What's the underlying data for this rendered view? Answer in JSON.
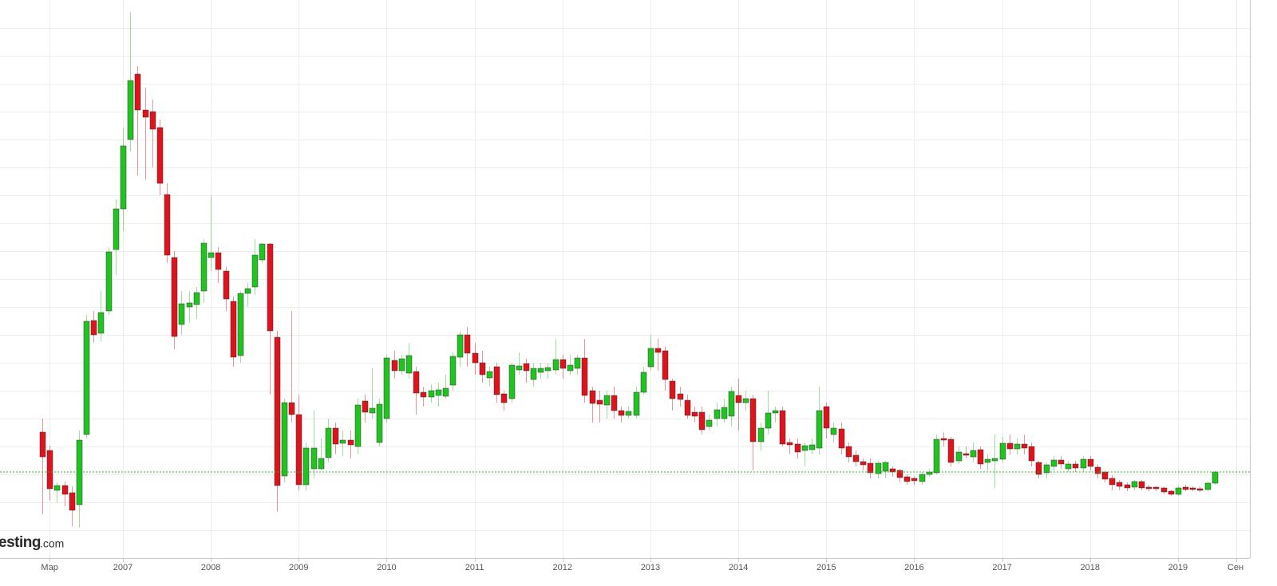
{
  "chart_data": {
    "type": "candlestick",
    "categories": [
      null,
      "Мар",
      null,
      null,
      null,
      null,
      null,
      null,
      null,
      null,
      null,
      "2007",
      null,
      null,
      null,
      null,
      null,
      null,
      null,
      null,
      null,
      null,
      null,
      "2008",
      null,
      null,
      null,
      null,
      null,
      null,
      null,
      null,
      null,
      null,
      null,
      "2009",
      null,
      null,
      null,
      null,
      null,
      null,
      null,
      null,
      null,
      null,
      null,
      "2010",
      null,
      null,
      null,
      null,
      null,
      null,
      null,
      null,
      null,
      null,
      null,
      "2011",
      null,
      null,
      null,
      null,
      null,
      null,
      null,
      null,
      null,
      null,
      null,
      "2012",
      null,
      null,
      null,
      null,
      null,
      null,
      null,
      null,
      null,
      null,
      null,
      "2013",
      null,
      null,
      null,
      null,
      null,
      null,
      null,
      null,
      null,
      null,
      null,
      "2014",
      null,
      null,
      null,
      null,
      null,
      null,
      null,
      null,
      null,
      null,
      null,
      "2015",
      null,
      null,
      null,
      null,
      null,
      null,
      null,
      null,
      null,
      null,
      null,
      "2016",
      null,
      null,
      null,
      null,
      null,
      null,
      null,
      null,
      null,
      null,
      null,
      "2017",
      null,
      null,
      null,
      null,
      null,
      null,
      null,
      null,
      null,
      null,
      null,
      "2018",
      null,
      null,
      null,
      null,
      null,
      null,
      null,
      null,
      null,
      null,
      null,
      "2019",
      null,
      null,
      null,
      null,
      null,
      null,
      null,
      "Сен"
    ],
    "open": [
      158,
      135,
      85,
      91,
      82,
      67,
      155,
      298,
      282,
      310,
      387,
      438,
      525,
      607,
      562,
      560,
      540,
      456,
      377,
      293,
      315,
      318,
      335,
      377,
      383,
      360,
      322,
      254,
      332,
      340,
      374,
      394,
      277,
      103,
      195,
      180,
      92,
      112,
      112,
      126,
      163,
      144,
      148,
      140,
      197,
      182,
      145,
      175,
      248,
      235,
      232,
      234,
      208,
      202,
      204,
      203,
      217,
      252,
      280,
      257,
      245,
      226,
      240,
      206,
      200,
      236,
      244,
      224,
      233,
      235,
      236,
      249,
      235,
      238,
      251,
      210,
      198,
      192,
      204,
      185,
      179,
      179,
      208,
      240,
      263,
      260,
      222,
      206,
      198,
      183,
      183,
      165,
      175,
      175,
      178,
      204,
      195,
      200,
      146,
      163,
      182,
      185,
      145,
      143,
      135,
      136,
      138,
      190,
      155,
      162,
      140,
      129,
      121,
      119,
      106,
      109,
      112,
      110,
      102,
      100,
      96,
      105,
      107,
      150,
      149,
      122,
      131,
      127,
      136,
      120,
      122,
      124,
      144,
      137,
      143,
      140,
      120,
      107,
      115,
      123,
      112,
      118,
      113,
      124,
      114,
      108,
      100,
      95,
      92,
      89,
      96,
      89,
      89,
      88,
      84,
      80,
      89,
      88,
      87,
      86,
      94,
      null,
      null,
      null
    ],
    "high": [
      175,
      141,
      95,
      96,
      90,
      160,
      305,
      310,
      335,
      390,
      450,
      540,
      685,
      617,
      590,
      575,
      550,
      470,
      385,
      335,
      335,
      340,
      400,
      455,
      390,
      365,
      328,
      335,
      345,
      400,
      395,
      395,
      285,
      200,
      310,
      205,
      145,
      185,
      150,
      175,
      170,
      160,
      160,
      200,
      205,
      238,
      200,
      255,
      260,
      255,
      270,
      240,
      215,
      218,
      220,
      230,
      258,
      285,
      290,
      270,
      260,
      240,
      245,
      210,
      245,
      258,
      250,
      245,
      245,
      245,
      275,
      255,
      255,
      255,
      275,
      215,
      210,
      210,
      215,
      190,
      190,
      215,
      240,
      280,
      275,
      265,
      225,
      215,
      205,
      190,
      190,
      180,
      195,
      200,
      215,
      225,
      210,
      205,
      170,
      210,
      190,
      190,
      150,
      150,
      145,
      150,
      215,
      195,
      170,
      170,
      145,
      135,
      125,
      125,
      122,
      122,
      115,
      112,
      105,
      102,
      108,
      112,
      155,
      158,
      152,
      140,
      140,
      145,
      140,
      130,
      155,
      152,
      155,
      150,
      155,
      145,
      122,
      120,
      128,
      128,
      122,
      122,
      128,
      128,
      118,
      110,
      104,
      98,
      95,
      98,
      98,
      92,
      90,
      90,
      86,
      90,
      92,
      90,
      90,
      96,
      110,
      null,
      null,
      null
    ],
    "low": [
      55,
      72,
      70,
      65,
      40,
      38,
      150,
      270,
      272,
      305,
      355,
      410,
      510,
      480,
      475,
      490,
      455,
      370,
      262,
      280,
      295,
      300,
      320,
      360,
      345,
      310,
      240,
      245,
      315,
      330,
      370,
      205,
      58,
      95,
      170,
      85,
      85,
      100,
      110,
      120,
      130,
      128,
      125,
      130,
      170,
      175,
      140,
      170,
      225,
      230,
      225,
      180,
      190,
      195,
      190,
      200,
      210,
      240,
      240,
      230,
      220,
      215,
      195,
      185,
      195,
      230,
      220,
      215,
      225,
      225,
      230,
      225,
      230,
      230,
      195,
      170,
      170,
      175,
      175,
      170,
      175,
      175,
      205,
      235,
      235,
      210,
      185,
      190,
      175,
      170,
      155,
      160,
      165,
      170,
      165,
      160,
      185,
      110,
      135,
      155,
      170,
      140,
      130,
      125,
      115,
      130,
      130,
      150,
      145,
      130,
      120,
      115,
      110,
      100,
      100,
      100,
      102,
      95,
      92,
      92,
      92,
      102,
      105,
      140,
      115,
      118,
      125,
      120,
      112,
      110,
      88,
      120,
      130,
      130,
      130,
      115,
      100,
      100,
      110,
      112,
      108,
      108,
      108,
      110,
      100,
      95,
      85,
      85,
      84,
      85,
      85,
      84,
      84,
      80,
      78,
      78,
      84,
      84,
      83,
      84,
      92,
      null,
      null,
      null
    ],
    "close": [
      127,
      87,
      91,
      80,
      60,
      148,
      297,
      280,
      308,
      384,
      438,
      517,
      599,
      562,
      553,
      538,
      470,
      380,
      278,
      319,
      320,
      333,
      395,
      383,
      362,
      325,
      252,
      332,
      338,
      380,
      394,
      285,
      91,
      195,
      180,
      92,
      138,
      138,
      125,
      163,
      143,
      148,
      142,
      192,
      183,
      188,
      193,
      251,
      235,
      250,
      254,
      207,
      202,
      210,
      211,
      213,
      253,
      280,
      257,
      245,
      230,
      234,
      205,
      195,
      242,
      241,
      235,
      238,
      238,
      239,
      249,
      238,
      242,
      251,
      204,
      194,
      193,
      204,
      185,
      179,
      184,
      208,
      233,
      263,
      258,
      224,
      200,
      199,
      179,
      178,
      161,
      173,
      186,
      189,
      209,
      195,
      200,
      146,
      163,
      182,
      185,
      143,
      142,
      133,
      141,
      142,
      185,
      163,
      163,
      138,
      127,
      121,
      117,
      107,
      119,
      120,
      108,
      101,
      96,
      97,
      105,
      108,
      149,
      148,
      120,
      133,
      129,
      135,
      118,
      124,
      125,
      144,
      137,
      143,
      138,
      122,
      105,
      117,
      123,
      118,
      118,
      113,
      124,
      115,
      106,
      99,
      92,
      90,
      88,
      96,
      88,
      87,
      87,
      83,
      80,
      88,
      86,
      86,
      85,
      94,
      108,
      null,
      null,
      null
    ],
    "up_color": "#1fc41f",
    "down_color": "#e0121b",
    "ylim": [
      0,
      700
    ],
    "gridlines": [
      35,
      70,
      105,
      140,
      175,
      210,
      245,
      280,
      315,
      350,
      385,
      420,
      455,
      490,
      525,
      560,
      595,
      630,
      665
    ],
    "grid": true,
    "price_line": 108,
    "price_line_color": "#22b822",
    "watermark": {
      "main": "esting",
      "suffix": ".com"
    }
  }
}
